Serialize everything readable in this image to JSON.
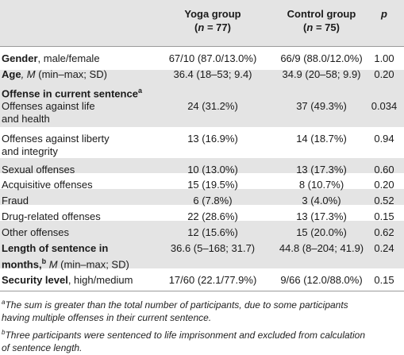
{
  "table": {
    "headers": {
      "yoga_group": "Yoga group",
      "control_group": "Control group",
      "n_symbol": "n",
      "yoga_n_eq": " = 77",
      "control_n_eq": " = 75",
      "p": "p"
    },
    "gender": {
      "label_bold": "Gender",
      "label_rest": ", male/female",
      "yoga": "67/10 (87.0/13.0%)",
      "control": "66/9 (88.0/12.0%)",
      "p": "1.00"
    },
    "age": {
      "label_bold": "Age",
      "label_italic": ", M",
      "label_rest": " (min–max; SD)",
      "yoga": "36.4 (18–53; 9.4)",
      "control": "34.9 (20–58; 9.9)",
      "p": "0.20"
    },
    "offense_heading": {
      "label": "Offense in current sentence",
      "footnote_mark": "a"
    },
    "offenses": [
      {
        "label_line1": "Offenses against life",
        "label_line2": "and health",
        "yoga": "24 (31.2%)",
        "control": "37 (49.3%)",
        "p": "0.034"
      },
      {
        "label_line1": "Offenses against liberty",
        "label_line2": "and integrity",
        "yoga": "13 (16.9%)",
        "control": "14 (18.7%)",
        "p": "0.94"
      },
      {
        "label_line1": "Sexual offenses",
        "yoga": "10 (13.0%)",
        "control": "13 (17.3%)",
        "p": "0.60"
      },
      {
        "label_line1": "Acquisitive offenses",
        "yoga": "15 (19.5%)",
        "control": "8 (10.7%)",
        "p": "0.20"
      },
      {
        "label_line1": "Fraud",
        "yoga": "6 (7.8%)",
        "control": "3 (4.0%)",
        "p": "0.52"
      },
      {
        "label_line1": "Drug-related offenses",
        "yoga": "22 (28.6%)",
        "control": "13 (17.3%)",
        "p": "0.15"
      },
      {
        "label_line1": "Other offenses",
        "yoga": "12 (15.6%)",
        "control": "15 (20.0%)",
        "p": "0.62"
      }
    ],
    "length": {
      "label_line1": "Length of sentence in",
      "label_line2_bold": "months,",
      "footnote_mark": "b",
      "label_line2_italic": "M",
      "label_line2_rest": " (min–max; SD)",
      "yoga": "36.6 (5–168; 31.7)",
      "control": "44.8 (8–204; 41.9)",
      "p": "0.24"
    },
    "security": {
      "label_bold": "Security level",
      "label_rest": ", high/medium",
      "yoga": "17/60 (22.1/77.9%)",
      "control": "9/66 (12.0/88.0%)",
      "p": "0.15"
    }
  },
  "footnotes": [
    {
      "mark": "a",
      "line1": "The sum is greater than the total number of participants, due to some participants",
      "line2": "having multiple offenses in their current sentence."
    },
    {
      "mark": "b",
      "line1": "Three participants were sentenced to life imprisonment and excluded from calculation",
      "line2": "of sentence length."
    }
  ]
}
